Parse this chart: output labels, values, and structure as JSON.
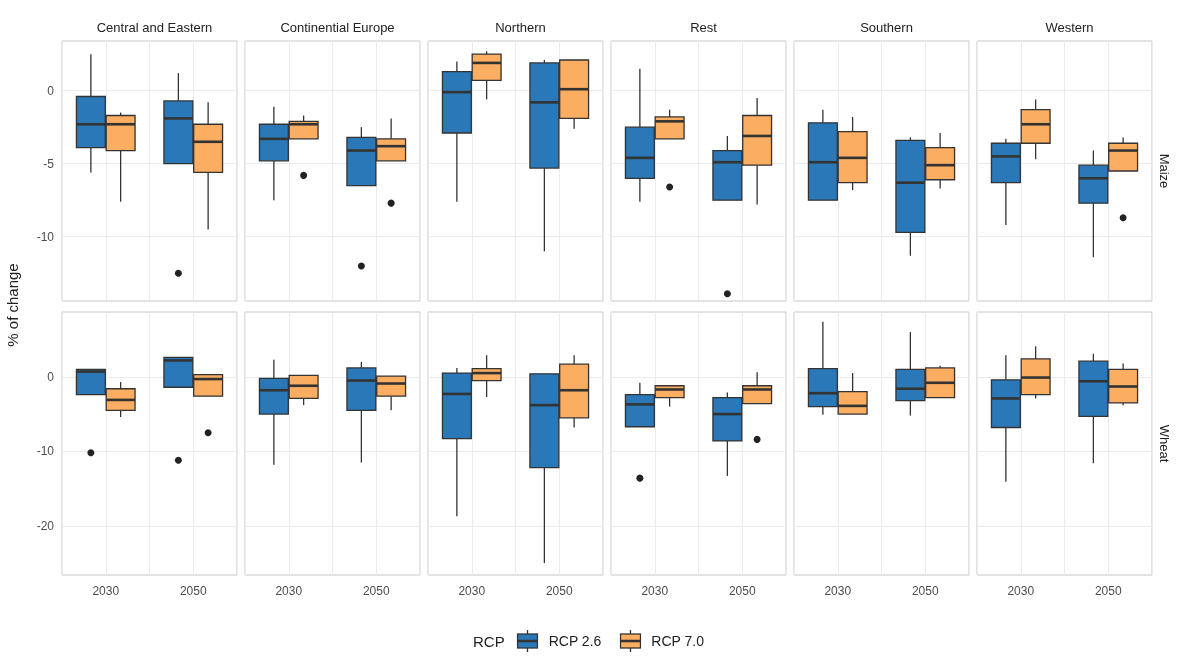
{
  "chart_data": [
    {
      "type": "box",
      "title": "Central and Eastern",
      "categories": [
        "2030",
        "2050"
      ],
      "ylim": [
        -14.4,
        3.4
      ],
      "yticks": [
        -10,
        -5,
        0
      ],
      "grid": true,
      "tick_labels": "y",
      "ylabel": "% of change",
      "legend": "bottom",
      "legend_title": "RCP",
      "series": [
        {
          "name": "RCP 2.6",
          "color": "#2a78b8",
          "boxes": [
            {
              "low": -5.6,
              "q1": -3.9,
              "median": -2.3,
              "q3": -0.4,
              "high": 2.5
            },
            {
              "low": -5.0,
              "q1": -5.0,
              "median": -1.9,
              "q3": -0.7,
              "high": 1.2,
              "outliers": [
                -12.5
              ]
            }
          ]
        },
        {
          "name": "RCP 7.0",
          "color": "#fbad62",
          "boxes": [
            {
              "low": -7.6,
              "q1": -4.1,
              "median": -2.3,
              "q3": -1.7,
              "high": -1.5
            },
            {
              "low": -9.5,
              "q1": -5.6,
              "median": -3.5,
              "q3": -2.3,
              "high": -0.8
            }
          ]
        }
      ]
    },
    {
      "type": "box",
      "title": "Continential Europe",
      "categories": [
        "2030",
        "2050"
      ],
      "ylim": [
        -14.4,
        3.4
      ],
      "yticks": [
        -10,
        -5,
        0
      ],
      "grid": true,
      "tick_labels": false,
      "series": [
        {
          "color": "#2a78b8",
          "boxes": [
            {
              "low": -7.5,
              "q1": -4.8,
              "median": -3.3,
              "q3": -2.3,
              "high": -1.1
            },
            {
              "low": -6.5,
              "q1": -6.5,
              "median": -4.1,
              "q3": -3.2,
              "high": -2.5,
              "outliers": [
                -12.0
              ]
            }
          ]
        },
        {
          "color": "#fbad62",
          "boxes": [
            {
              "low": -3.3,
              "q1": -3.3,
              "median": -2.3,
              "q3": -2.1,
              "high": -1.7,
              "outliers": [
                -5.8
              ]
            },
            {
              "low": -4.8,
              "q1": -4.8,
              "median": -3.8,
              "q3": -3.3,
              "high": -1.9,
              "outliers": [
                -7.7
              ]
            }
          ]
        }
      ]
    },
    {
      "type": "box",
      "title": "Northern",
      "categories": [
        "2030",
        "2050"
      ],
      "ylim": [
        -14.4,
        3.4
      ],
      "yticks": [
        -10,
        -5,
        0
      ],
      "grid": true,
      "tick_labels": false,
      "series": [
        {
          "color": "#2a78b8",
          "boxes": [
            {
              "low": -7.6,
              "q1": -2.9,
              "median": -0.1,
              "q3": 1.3,
              "high": 2.0
            },
            {
              "low": -11.0,
              "q1": -5.3,
              "median": -0.8,
              "q3": 1.9,
              "high": 2.1
            }
          ]
        },
        {
          "color": "#fbad62",
          "boxes": [
            {
              "low": -0.6,
              "q1": 0.7,
              "median": 1.9,
              "q3": 2.5,
              "high": 2.7
            },
            {
              "low": -2.6,
              "q1": -1.9,
              "median": 0.1,
              "q3": 2.1,
              "high": 2.2
            }
          ]
        }
      ]
    },
    {
      "type": "box",
      "title": "Rest",
      "categories": [
        "2030",
        "2050"
      ],
      "ylim": [
        -14.4,
        3.4
      ],
      "yticks": [
        -10,
        -5,
        0
      ],
      "grid": true,
      "tick_labels": false,
      "series": [
        {
          "color": "#2a78b8",
          "boxes": [
            {
              "low": -7.6,
              "q1": -6.0,
              "median": -4.6,
              "q3": -2.5,
              "high": 1.5
            },
            {
              "low": -7.5,
              "q1": -7.5,
              "median": -4.9,
              "q3": -4.1,
              "high": -3.1,
              "outliers": [
                -13.9
              ]
            }
          ]
        },
        {
          "color": "#fbad62",
          "boxes": [
            {
              "low": -3.3,
              "q1": -3.3,
              "median": -2.1,
              "q3": -1.8,
              "high": -1.3,
              "outliers": [
                -6.6
              ]
            },
            {
              "low": -7.8,
              "q1": -5.1,
              "median": -3.1,
              "q3": -1.7,
              "high": -0.5
            }
          ]
        }
      ]
    },
    {
      "type": "box",
      "title": "Southern",
      "categories": [
        "2030",
        "2050"
      ],
      "ylim": [
        -14.4,
        3.4
      ],
      "yticks": [
        -10,
        -5,
        0
      ],
      "grid": true,
      "tick_labels": false,
      "series": [
        {
          "color": "#2a78b8",
          "boxes": [
            {
              "low": -7.6,
              "q1": -7.5,
              "median": -4.9,
              "q3": -2.2,
              "high": -1.3
            },
            {
              "low": -11.3,
              "q1": -9.7,
              "median": -6.3,
              "q3": -3.4,
              "high": -3.2
            }
          ]
        },
        {
          "color": "#fbad62",
          "boxes": [
            {
              "low": -6.8,
              "q1": -6.3,
              "median": -4.6,
              "q3": -2.8,
              "high": -1.8
            },
            {
              "low": -6.7,
              "q1": -6.1,
              "median": -5.1,
              "q3": -3.9,
              "high": -2.9
            }
          ]
        }
      ]
    },
    {
      "type": "box",
      "title": "Western",
      "annotations": [
        "Maize"
      ],
      "categories": [
        "2030",
        "2050"
      ],
      "ylim": [
        -14.4,
        3.4
      ],
      "yticks": [
        -10,
        -5,
        0
      ],
      "grid": true,
      "tick_labels": false,
      "series": [
        {
          "color": "#2a78b8",
          "boxes": [
            {
              "low": -9.2,
              "q1": -6.3,
              "median": -4.5,
              "q3": -3.6,
              "high": -3.3
            },
            {
              "low": -11.4,
              "q1": -7.7,
              "median": -6.0,
              "q3": -5.1,
              "high": -4.1
            }
          ]
        },
        {
          "color": "#fbad62",
          "boxes": [
            {
              "low": -4.7,
              "q1": -3.6,
              "median": -2.3,
              "q3": -1.3,
              "high": -0.6
            },
            {
              "low": -5.5,
              "q1": -5.5,
              "median": -4.1,
              "q3": -3.6,
              "high": -3.2,
              "outliers": [
                -8.7
              ]
            }
          ]
        }
      ]
    },
    {
      "type": "box",
      "categories": [
        "2030",
        "2050"
      ],
      "ylim": [
        -26.6,
        8.7
      ],
      "yticks": [
        -20,
        -10,
        0
      ],
      "grid": true,
      "series": [
        {
          "color": "#2a78b8",
          "boxes": [
            {
              "low": -2.4,
              "q1": -2.4,
              "median": 0.7,
              "q3": 1.0,
              "high": 1.1,
              "outliers": [
                -10.2
              ]
            },
            {
              "low": -1.4,
              "q1": -1.4,
              "median": 2.2,
              "q3": 2.6,
              "high": 2.6,
              "outliers": [
                -11.2
              ]
            }
          ]
        },
        {
          "color": "#fbad62",
          "boxes": [
            {
              "low": -5.4,
              "q1": -4.5,
              "median": -3.1,
              "q3": -1.6,
              "high": -0.7
            },
            {
              "low": -2.6,
              "q1": -2.6,
              "median": -0.3,
              "q3": 0.3,
              "high": 0.3,
              "outliers": [
                -7.5
              ]
            }
          ]
        }
      ]
    },
    {
      "type": "box",
      "categories": [
        "2030",
        "2050"
      ],
      "ylim": [
        -26.6,
        8.7
      ],
      "yticks": [
        -20,
        -10,
        0
      ],
      "grid": true,
      "tick_labels": "x",
      "series": [
        {
          "color": "#2a78b8",
          "boxes": [
            {
              "low": -11.8,
              "q1": -5.0,
              "median": -1.8,
              "q3": -0.2,
              "high": 2.3
            },
            {
              "low": -11.5,
              "q1": -4.5,
              "median": -0.5,
              "q3": 1.2,
              "high": 2.0
            }
          ]
        },
        {
          "color": "#fbad62",
          "boxes": [
            {
              "low": -3.8,
              "q1": -2.9,
              "median": -1.2,
              "q3": 0.2,
              "high": 0.3
            },
            {
              "low": -4.5,
              "q1": -2.6,
              "median": -0.9,
              "q3": 0.1,
              "high": 0.1
            }
          ]
        }
      ]
    },
    {
      "type": "box",
      "categories": [
        "2030",
        "2050"
      ],
      "ylim": [
        -26.6,
        8.7
      ],
      "yticks": [
        -20,
        -10,
        0
      ],
      "grid": true,
      "tick_labels": "x",
      "series": [
        {
          "color": "#2a78b8",
          "boxes": [
            {
              "low": -18.7,
              "q1": -8.3,
              "median": -2.3,
              "q3": 0.5,
              "high": 1.2
            },
            {
              "low": -25.0,
              "q1": -12.2,
              "median": -3.8,
              "q3": 0.4,
              "high": 0.5
            }
          ]
        },
        {
          "color": "#fbad62",
          "boxes": [
            {
              "low": -2.7,
              "q1": -0.5,
              "median": 0.5,
              "q3": 1.1,
              "high": 2.9
            },
            {
              "low": -6.8,
              "q1": -5.5,
              "median": -1.8,
              "q3": 1.7,
              "high": 2.9
            }
          ]
        }
      ]
    },
    {
      "type": "box",
      "categories": [
        "2030",
        "2050"
      ],
      "ylim": [
        -26.6,
        8.7
      ],
      "yticks": [
        -20,
        -10,
        0
      ],
      "grid": true,
      "tick_labels": "x",
      "series": [
        {
          "color": "#2a78b8",
          "boxes": [
            {
              "low": -6.7,
              "q1": -6.7,
              "median": -3.7,
              "q3": -2.4,
              "high": -0.8,
              "outliers": [
                -13.6
              ]
            },
            {
              "low": -13.3,
              "q1": -8.6,
              "median": -5.0,
              "q3": -2.8,
              "high": -2.1
            }
          ]
        },
        {
          "color": "#fbad62",
          "boxes": [
            {
              "low": -4.0,
              "q1": -2.8,
              "median": -1.7,
              "q3": -1.2,
              "high": -1.0
            },
            {
              "low": -3.6,
              "q1": -3.6,
              "median": -1.7,
              "q3": -1.2,
              "high": 0.6,
              "outliers": [
                -8.4
              ]
            }
          ]
        }
      ]
    },
    {
      "type": "box",
      "categories": [
        "2030",
        "2050"
      ],
      "ylim": [
        -26.6,
        8.7
      ],
      "yticks": [
        -20,
        -10,
        0
      ],
      "grid": true,
      "tick_labels": "x",
      "series": [
        {
          "color": "#2a78b8",
          "boxes": [
            {
              "low": -5.1,
              "q1": -4.0,
              "median": -2.2,
              "q3": 1.1,
              "high": 7.4
            },
            {
              "low": -5.2,
              "q1": -3.2,
              "median": -1.6,
              "q3": 1.0,
              "high": 6.0
            }
          ]
        },
        {
          "color": "#fbad62",
          "boxes": [
            {
              "low": -5.2,
              "q1": -5.0,
              "median": -3.9,
              "q3": -2.0,
              "high": 0.5
            },
            {
              "low": -2.8,
              "q1": -2.8,
              "median": -0.8,
              "q3": 1.2,
              "high": 1.5
            }
          ]
        }
      ]
    },
    {
      "type": "box",
      "annotations": [
        "Wheat"
      ],
      "categories": [
        "2030",
        "2050"
      ],
      "ylim": [
        -26.6,
        8.7
      ],
      "yticks": [
        -20,
        -10,
        0
      ],
      "grid": true,
      "tick_labels": "x",
      "series": [
        {
          "color": "#2a78b8",
          "boxes": [
            {
              "low": -14.1,
              "q1": -6.8,
              "median": -2.9,
              "q3": -0.4,
              "high": 2.9
            },
            {
              "low": -11.6,
              "q1": -5.3,
              "median": -0.6,
              "q3": 2.1,
              "high": 3.1
            }
          ]
        },
        {
          "color": "#fbad62",
          "boxes": [
            {
              "low": -2.9,
              "q1": -2.4,
              "median": -0.1,
              "q3": 2.4,
              "high": 4.1
            },
            {
              "low": -3.8,
              "q1": -3.5,
              "median": -1.3,
              "q3": 1.0,
              "high": 1.8
            }
          ]
        }
      ]
    }
  ]
}
